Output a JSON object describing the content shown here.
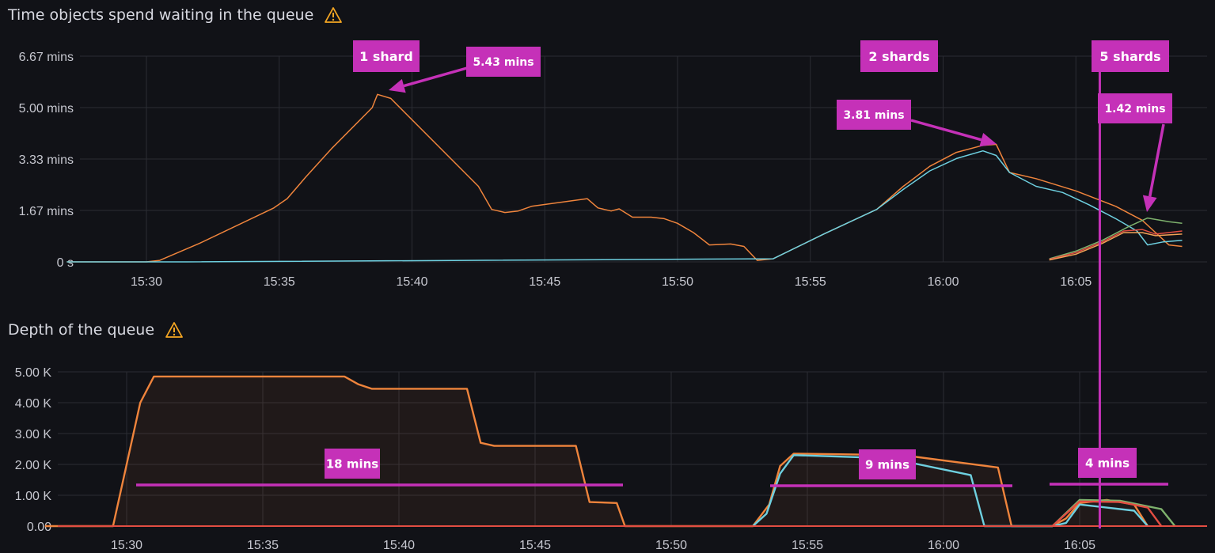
{
  "panels": [
    {
      "title": "Time objects spend waiting in the queue"
    },
    {
      "title": "Depth of the queue"
    }
  ],
  "colors": {
    "background": "#111217",
    "grid": "#2b2c33",
    "annotation": "#c531b8",
    "warning": "#f5a623",
    "orange": "#ef843c",
    "blue": "#6ed0e0",
    "green": "#7eb26d",
    "red": "#e24d42",
    "orange2": "#f2a356"
  },
  "annotations": {
    "time_panel": [
      {
        "label": "1 shard",
        "size": "large"
      },
      {
        "label": "5.43 mins",
        "size": "small",
        "arrow_to": [
          15.643,
          5.43
        ]
      },
      {
        "label": "2 shards",
        "size": "large"
      },
      {
        "label": "5 shards",
        "size": "large"
      },
      {
        "label": "3.81 mins",
        "size": "small",
        "arrow_to": [
          16.035,
          3.81
        ]
      },
      {
        "label": "1.42 mins",
        "size": "small",
        "arrow_to": [
          16.125,
          1.42
        ]
      }
    ],
    "depth_panel": [
      {
        "label": "18 mins",
        "line_from": 15.5,
        "line_to": 15.803,
        "y": 1300
      },
      {
        "label": "9 mins",
        "line_from": 15.903,
        "line_to": 16.048,
        "y": 1300
      },
      {
        "label": "4 mins",
        "line_from": 16.073,
        "line_to": 16.142,
        "y": 1350
      }
    ],
    "shard_changes": [
      15.884,
      16.059
    ]
  },
  "chart_data": [
    {
      "type": "line",
      "title": "Time objects spend waiting in the queue",
      "x_unit": "time (HH:MM)",
      "xlim": [
        "15:27",
        "15:49 (16:09)"
      ],
      "x_ticks": [
        "15:30",
        "15:35",
        "15:40",
        "15:45",
        "15:50",
        "15:55",
        "16:00",
        "16:05"
      ],
      "y_ticks": [
        "0 s",
        "1.67 mins",
        "3.33 mins",
        "5.00 mins",
        "6.67 mins"
      ],
      "ylim": [
        0,
        6.67
      ],
      "grid": true,
      "series": [
        {
          "color": "orange",
          "points": [
            [
              "15:27",
              0
            ],
            [
              "15:30",
              0
            ],
            [
              "15:30.5",
              0.05
            ],
            [
              "15:32",
              0.6
            ],
            [
              "15:34.8",
              1.75
            ],
            [
              "15:35.3",
              2.05
            ],
            [
              "15:36",
              2.75
            ],
            [
              "15:37",
              3.7
            ],
            [
              "15:38.5",
              5.0
            ],
            [
              "15:38.7",
              5.43
            ],
            [
              "15:39.2",
              5.3
            ],
            [
              "15:42.5",
              2.45
            ],
            [
              "15:43",
              1.7
            ],
            [
              "15:43.5",
              1.6
            ],
            [
              "15:44",
              1.65
            ],
            [
              "15:44.5",
              1.8
            ],
            [
              "15:46.6",
              2.05
            ],
            [
              "15:47",
              1.75
            ],
            [
              "15:47.5",
              1.65
            ],
            [
              "15:47.8",
              1.72
            ],
            [
              "15:48.3",
              1.45
            ],
            [
              "15:49",
              1.45
            ],
            [
              "15:49.5",
              1.4
            ],
            [
              "15:50",
              1.25
            ],
            [
              "15:50.6",
              0.95
            ],
            [
              "15:51.2",
              0.55
            ],
            [
              "15:52",
              0.58
            ],
            [
              "15:52.5",
              0.5
            ],
            [
              "15:53",
              0.05
            ],
            [
              "15:53.6",
              0.1
            ],
            [
              "15:55.5",
              0.9
            ],
            [
              "15:57.5",
              1.7
            ],
            [
              "15:58.5",
              2.45
            ],
            [
              "15:59.5",
              3.1
            ],
            [
              "16:00.5",
              3.55
            ],
            [
              "16:01.5",
              3.78
            ],
            [
              "16:02",
              3.81
            ],
            [
              "16:02.5",
              2.9
            ],
            [
              "16:03.5",
              2.7
            ],
            [
              "16:05",
              2.3
            ],
            [
              "16:06.5",
              1.8
            ],
            [
              "16:07.5",
              1.35
            ],
            [
              "16:08",
              0.95
            ],
            [
              "16:08.5",
              0.55
            ],
            [
              "16:09",
              0.5
            ]
          ]
        },
        {
          "color": "blue",
          "points": [
            [
              "15:27",
              0
            ],
            [
              "15:31.5",
              0
            ],
            [
              "15:53.6",
              0.1
            ],
            [
              "15:55.5",
              0.9
            ],
            [
              "15:57.5",
              1.7
            ],
            [
              "15:58.5",
              2.35
            ],
            [
              "15:59.5",
              2.95
            ],
            [
              "16:00.5",
              3.35
            ],
            [
              "16:01.5",
              3.6
            ],
            [
              "16:02",
              3.45
            ],
            [
              "16:02.5",
              2.9
            ],
            [
              "16:03.5",
              2.45
            ],
            [
              "16:04.5",
              2.25
            ],
            [
              "16:05.5",
              1.85
            ],
            [
              "16:06.5",
              1.4
            ],
            [
              "16:07.3",
              1.0
            ],
            [
              "16:07.7",
              0.55
            ],
            [
              "16:08.3",
              0.65
            ],
            [
              "16:09",
              0.7
            ]
          ]
        },
        {
          "color": "green",
          "points": [
            [
              "16:04",
              0.1
            ],
            [
              "16:05",
              0.35
            ],
            [
              "16:06",
              0.7
            ],
            [
              "16:07",
              1.15
            ],
            [
              "16:07.7",
              1.42
            ],
            [
              "16:08.5",
              1.3
            ],
            [
              "16:09",
              1.25
            ]
          ]
        },
        {
          "color": "red",
          "points": [
            [
              "16:04",
              0.08
            ],
            [
              "16:05",
              0.3
            ],
            [
              "16:06",
              0.65
            ],
            [
              "16:06.8",
              1.0
            ],
            [
              "16:07.5",
              1.05
            ],
            [
              "16:08",
              0.9
            ],
            [
              "16:09",
              1.0
            ]
          ]
        },
        {
          "color": "orange2",
          "points": [
            [
              "16:04",
              0.06
            ],
            [
              "16:05",
              0.25
            ],
            [
              "16:06",
              0.6
            ],
            [
              "16:06.8",
              0.95
            ],
            [
              "16:07.5",
              0.95
            ],
            [
              "16:08",
              0.85
            ],
            [
              "16:09",
              0.9
            ]
          ]
        }
      ]
    },
    {
      "type": "area",
      "title": "Depth of the queue",
      "x_unit": "time (HH:MM)",
      "x_ticks": [
        "15:30",
        "15:35",
        "15:40",
        "15:45",
        "15:50",
        "15:55",
        "16:00",
        "16:05"
      ],
      "y_ticks": [
        "0.00",
        "1.00 K",
        "2.00 K",
        "3.00 K",
        "4.00 K",
        "5.00 K"
      ],
      "ylim": [
        0,
        5000
      ],
      "grid": true,
      "series": [
        {
          "color": "orange",
          "points": [
            [
              "15:27",
              0
            ],
            [
              "15:29.5",
              0
            ],
            [
              "15:30.5",
              4000
            ],
            [
              "15:31",
              4850
            ],
            [
              "15:38",
              4850
            ],
            [
              "15:38.5",
              4600
            ],
            [
              "15:39",
              4450
            ],
            [
              "15:42.5",
              4450
            ],
            [
              "15:43",
              2700
            ],
            [
              "15:43.5",
              2600
            ],
            [
              "15:46.5",
              2600
            ],
            [
              "15:47",
              780
            ],
            [
              "15:48",
              750
            ],
            [
              "15:48.3",
              0
            ],
            [
              "15:53",
              0
            ],
            [
              "15:53.6",
              700
            ],
            [
              "15:54",
              1950
            ],
            [
              "15:54.5",
              2350
            ],
            [
              "15:58.5",
              2300
            ],
            [
              "16:02",
              1900
            ],
            [
              "16:02.5",
              0
            ],
            [
              "16:04",
              0
            ],
            [
              "16:04.5",
              250
            ],
            [
              "16:05",
              750
            ],
            [
              "16:06",
              850
            ],
            [
              "16:07",
              700
            ],
            [
              "16:07.5",
              0
            ]
          ]
        },
        {
          "color": "blue",
          "points": [
            [
              "15:53",
              0
            ],
            [
              "15:53.5",
              400
            ],
            [
              "15:54",
              1700
            ],
            [
              "15:54.5",
              2300
            ],
            [
              "15:58",
              2200
            ],
            [
              "16:01",
              1650
            ],
            [
              "16:01.5",
              0
            ],
            [
              "16:04",
              0
            ],
            [
              "16:04.5",
              100
            ],
            [
              "16:05",
              700
            ],
            [
              "16:07",
              500
            ],
            [
              "16:07.5",
              0
            ]
          ]
        },
        {
          "color": "green",
          "points": [
            [
              "16:04",
              0
            ],
            [
              "16:05",
              850
            ],
            [
              "16:06.5",
              820
            ],
            [
              "16:08",
              550
            ],
            [
              "16:08.5",
              0
            ]
          ]
        },
        {
          "color": "red",
          "points": [
            [
              "16:04",
              0
            ],
            [
              "16:05",
              800
            ],
            [
              "16:06.5",
              780
            ],
            [
              "16:07.5",
              600
            ],
            [
              "16:08",
              0
            ]
          ]
        }
      ]
    }
  ]
}
